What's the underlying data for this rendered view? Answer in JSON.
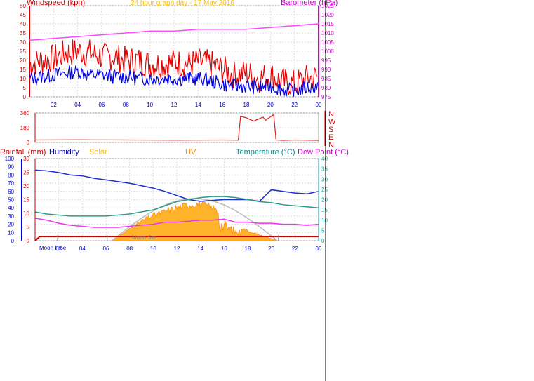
{
  "header": {
    "left_title": "Windspeed (kph)",
    "center_title": "24 hour graph day - 17 May 2016",
    "right_title": "Barometer (hPa)"
  },
  "colors": {
    "windspeed": "#e60000",
    "gust": "#e60000",
    "avgwind": "#0000e6",
    "barometer": "#ff44ff",
    "direction": "#e02020",
    "humidity": "#1e2ed0",
    "temperature": "#2e9a8a",
    "dewpoint": "#ee33ee",
    "rainfall": "#cc0000",
    "solar": "#ffa500",
    "uv": "#ff8800",
    "axis_blue": "#0000cc",
    "axis_red": "#cc0000",
    "axis_magenta": "#cc00cc",
    "axis_teal": "#00aaaa",
    "grid": "#dddddd"
  },
  "legend_bottom": {
    "rainfall": "Rainfall (mm)",
    "humidity": "Humidity",
    "solar": "Solar",
    "uv": "UV",
    "temperature": "Temperature (°C)",
    "dewpoint": "Dew Point (°C)"
  },
  "direction_letters": [
    "N",
    "W",
    "S",
    "E",
    "N"
  ],
  "moon": {
    "rise": "Moon Rise",
    "set": "Moon Set"
  },
  "chart_data": [
    {
      "type": "line",
      "name": "wind-barometer",
      "title": "24 hour graph day - 17 May 2016",
      "x_ticks": [
        "02",
        "04",
        "06",
        "08",
        "10",
        "12",
        "14",
        "16",
        "18",
        "20",
        "22",
        "00"
      ],
      "xlim": [
        0,
        24
      ],
      "ylim_left": [
        0,
        50
      ],
      "yticks_left": [
        0,
        5,
        10,
        15,
        20,
        25,
        30,
        35,
        40,
        45,
        50
      ],
      "ylim_right": [
        975,
        1025
      ],
      "yticks_right": [
        975,
        980,
        985,
        990,
        995,
        1000,
        1005,
        1010,
        1015,
        1020,
        1025
      ],
      "grid": true,
      "series": [
        {
          "key": "gust",
          "x": [
            0,
            1,
            2,
            3,
            4,
            5,
            6,
            7,
            8,
            9,
            10,
            11,
            12,
            13,
            14,
            15,
            16,
            17,
            18,
            19,
            20,
            21,
            22,
            23,
            24
          ],
          "values": [
            18,
            20,
            21,
            24,
            25,
            24,
            22,
            22,
            20,
            20,
            18,
            18,
            19,
            18,
            19,
            18,
            15,
            12,
            13,
            10,
            12,
            8,
            7,
            10,
            11
          ]
        },
        {
          "key": "avgwind",
          "x": [
            0,
            1,
            2,
            3,
            4,
            5,
            6,
            7,
            8,
            9,
            10,
            11,
            12,
            13,
            14,
            15,
            16,
            17,
            18,
            19,
            20,
            21,
            22,
            23,
            24
          ],
          "values": [
            10,
            11,
            12,
            13,
            14,
            12,
            12,
            11,
            11,
            10,
            10,
            10,
            10,
            10,
            10,
            9,
            7,
            6,
            6,
            5,
            6,
            4,
            3,
            5,
            6
          ]
        },
        {
          "key": "barometer",
          "x": [
            0,
            2,
            4,
            6,
            8,
            10,
            12,
            14,
            16,
            18,
            20,
            22,
            24
          ],
          "values": [
            1006,
            1007,
            1008,
            1009,
            1010,
            1011,
            1011,
            1012,
            1012,
            1012,
            1013,
            1014,
            1015
          ]
        }
      ]
    },
    {
      "type": "line",
      "name": "wind-direction",
      "ylim": [
        0,
        360
      ],
      "yticks": [
        0,
        180,
        360
      ],
      "series": [
        {
          "key": "direction",
          "x": [
            0,
            4,
            8,
            12,
            16,
            17.2,
            17.4,
            17.9,
            18.5,
            19.3,
            19.5,
            19.9,
            20.2,
            20.4,
            21,
            22,
            24
          ],
          "values": [
            30,
            32,
            30,
            28,
            30,
            28,
            320,
            300,
            260,
            310,
            270,
            310,
            340,
            30,
            25,
            30,
            25
          ]
        }
      ]
    },
    {
      "type": "line",
      "name": "temp-humidity-solar",
      "xlim": [
        0,
        24
      ],
      "x_ticks": [
        "02",
        "04",
        "06",
        "08",
        "10",
        "12",
        "14",
        "16",
        "18",
        "20",
        "22",
        "00"
      ],
      "ylim_humidity": [
        0,
        100
      ],
      "yticks_humidity": [
        0,
        10,
        20,
        30,
        40,
        50,
        60,
        70,
        80,
        90,
        100
      ],
      "ylim_rain": [
        0,
        30
      ],
      "yticks_rain": [
        0,
        5,
        10,
        15,
        20,
        25,
        30
      ],
      "ylim_temp": [
        0,
        40
      ],
      "yticks_temp": [
        0,
        5,
        10,
        15,
        20,
        25,
        30,
        35,
        40
      ],
      "series": [
        {
          "key": "humidity",
          "x": [
            0,
            1,
            2,
            3,
            4,
            5,
            6,
            7,
            8,
            9,
            10,
            11,
            12,
            13,
            14,
            15,
            16,
            17,
            18,
            19,
            20,
            21,
            22,
            23,
            24
          ],
          "values": [
            86,
            85,
            83,
            80,
            79,
            76,
            74,
            72,
            70,
            67,
            64,
            60,
            55,
            50,
            48,
            49,
            50,
            50,
            50,
            48,
            62,
            60,
            58,
            57,
            60
          ]
        },
        {
          "key": "temperature",
          "x": [
            0,
            1,
            2,
            3,
            4,
            5,
            6,
            7,
            8,
            9,
            10,
            11,
            12,
            13,
            14,
            15,
            16,
            17,
            18,
            19,
            20,
            21,
            22,
            23,
            24
          ],
          "values": [
            14,
            13,
            12.5,
            12,
            12,
            12,
            12,
            12.5,
            13,
            14,
            15,
            17,
            19,
            20,
            21,
            21.5,
            21.5,
            21,
            20,
            19,
            18.5,
            17.5,
            17,
            16.5,
            16
          ]
        },
        {
          "key": "dewpoint",
          "x": [
            0,
            1,
            2,
            3,
            4,
            5,
            6,
            7,
            8,
            9,
            10,
            11,
            12,
            13,
            14,
            15,
            16,
            17,
            18,
            19,
            20,
            21,
            22,
            23,
            24
          ],
          "values": [
            11,
            10,
            8.5,
            7.5,
            7,
            6.5,
            6.5,
            6.5,
            7,
            7.5,
            8,
            9,
            9,
            9.5,
            10,
            10,
            10.5,
            9,
            9,
            8.5,
            8.5,
            8,
            8,
            7.5,
            8
          ]
        },
        {
          "key": "rainfall",
          "x": [
            0,
            0.4,
            24
          ],
          "values": [
            0,
            1.5,
            1.5
          ]
        },
        {
          "key": "solar",
          "x": [
            6.5,
            7,
            8,
            9,
            10,
            11,
            12,
            13,
            14,
            15,
            16,
            17,
            18,
            19,
            20,
            20.5
          ],
          "values": [
            0,
            2,
            6,
            10,
            13,
            15,
            17,
            18.5,
            19,
            17,
            13,
            8,
            5,
            3,
            1,
            0
          ]
        }
      ]
    }
  ]
}
